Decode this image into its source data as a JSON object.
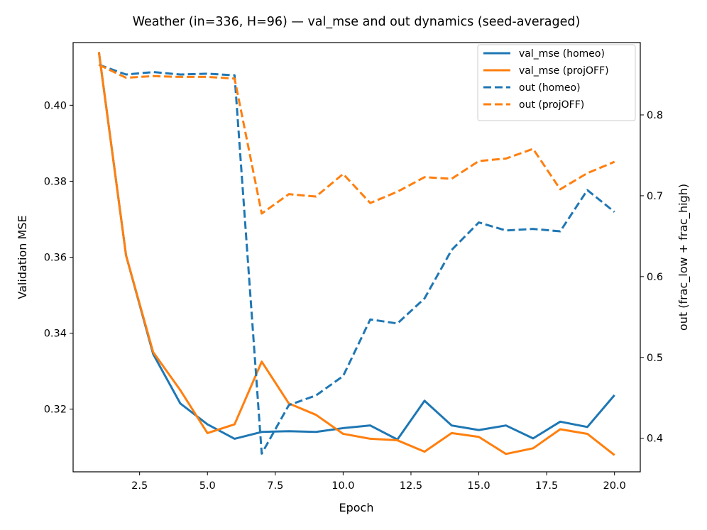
{
  "chart_data": {
    "type": "line",
    "title": "Weather (in=336, H=96) — val_mse and out dynamics (seed-averaged)",
    "xlabel": "Epoch",
    "ylabel": "Validation MSE",
    "ylabel_right": "out (frac_low + frac_high)",
    "xlim": [
      0.05,
      20.95
    ],
    "ylim": [
      0.3035,
      0.4165
    ],
    "ylim_right": [
      0.3585,
      0.8895
    ],
    "x_ticks": [
      2.5,
      5.0,
      7.5,
      10.0,
      12.5,
      15.0,
      17.5,
      20.0
    ],
    "x_tick_labels": [
      "2.5",
      "5.0",
      "7.5",
      "10.0",
      "12.5",
      "15.0",
      "17.5",
      "20.0"
    ],
    "y_ticks": [
      0.32,
      0.34,
      0.36,
      0.38,
      0.4
    ],
    "y_tick_labels": [
      "0.32",
      "0.34",
      "0.36",
      "0.38",
      "0.40"
    ],
    "y_right_ticks": [
      0.4,
      0.5,
      0.6,
      0.7,
      0.8
    ],
    "y_right_tick_labels": [
      "0.4",
      "0.5",
      "0.6",
      "0.7",
      "0.8"
    ],
    "x": [
      1,
      2,
      3,
      4,
      5,
      6,
      7,
      8,
      9,
      10,
      11,
      12,
      13,
      14,
      15,
      16,
      17,
      18,
      19,
      20
    ],
    "series": [
      {
        "name": "val_mse (homeo)",
        "axis": "left",
        "style": "solid",
        "color": "#1f77b4",
        "values": [
          0.414,
          0.3605,
          0.3345,
          0.3215,
          0.316,
          0.3122,
          0.314,
          0.3142,
          0.314,
          0.315,
          0.3157,
          0.312,
          0.3222,
          0.3157,
          0.3145,
          0.3157,
          0.3123,
          0.3167,
          0.3153,
          0.3237
        ]
      },
      {
        "name": "val_mse (projOFF)",
        "axis": "left",
        "style": "solid",
        "color": "#ff7f0e",
        "values": [
          0.414,
          0.3605,
          0.335,
          0.325,
          0.3137,
          0.316,
          0.3325,
          0.3215,
          0.3185,
          0.3135,
          0.3122,
          0.3118,
          0.3088,
          0.3137,
          0.3127,
          0.3082,
          0.3097,
          0.3147,
          0.3135,
          0.3079
        ]
      },
      {
        "name": "out (homeo)",
        "axis": "right",
        "style": "dashed",
        "color": "#1f77b4",
        "values": [
          0.862,
          0.85,
          0.853,
          0.85,
          0.851,
          0.849,
          0.381,
          0.441,
          0.453,
          0.477,
          0.547,
          0.542,
          0.573,
          0.633,
          0.667,
          0.657,
          0.659,
          0.656,
          0.707,
          0.68
        ]
      },
      {
        "name": "out (projOFF)",
        "axis": "right",
        "style": "dashed",
        "color": "#ff7f0e",
        "values": [
          0.862,
          0.846,
          0.848,
          0.847,
          0.847,
          0.845,
          0.678,
          0.702,
          0.699,
          0.727,
          0.691,
          0.705,
          0.723,
          0.721,
          0.743,
          0.746,
          0.758,
          0.708,
          0.728,
          0.742
        ]
      }
    ],
    "legend_position": "top-right"
  }
}
